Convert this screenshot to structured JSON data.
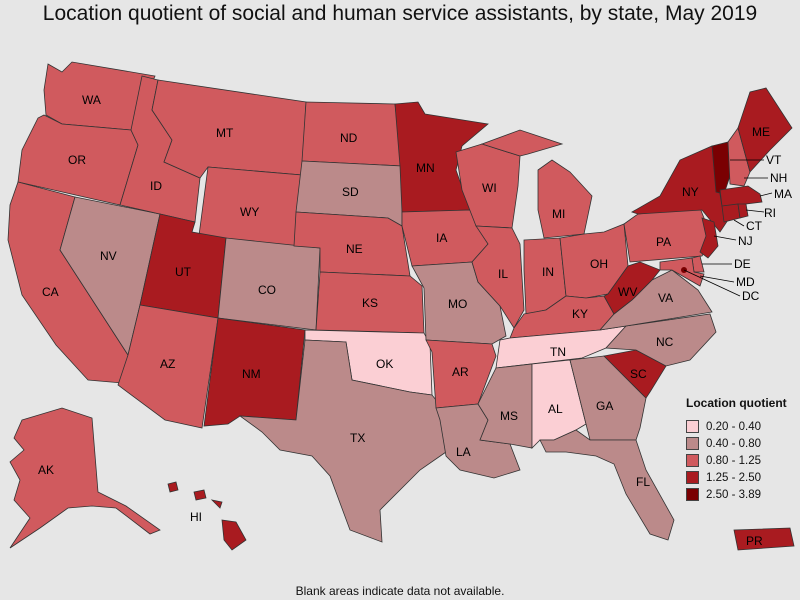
{
  "title": "Location quotient of social and human service assistants, by state, May 2019",
  "legend": {
    "title": "Location quotient",
    "bins": [
      {
        "label": "0.20 - 0.40",
        "color": "#fbcfd4"
      },
      {
        "label": "0.40 - 0.80",
        "color": "#bb8a8a"
      },
      {
        "label": "0.80 - 1.25",
        "color": "#d05a5e"
      },
      {
        "label": "1.25 - 2.50",
        "color": "#a91b20"
      },
      {
        "label": "2.50 - 3.89",
        "color": "#7a0002"
      }
    ]
  },
  "states": {
    "WA": {
      "label": "WA",
      "bin": 2
    },
    "OR": {
      "label": "OR",
      "bin": 2
    },
    "CA": {
      "label": "CA",
      "bin": 2
    },
    "NV": {
      "label": "NV",
      "bin": 1
    },
    "ID": {
      "label": "ID",
      "bin": 2
    },
    "MT": {
      "label": "MT",
      "bin": 2
    },
    "WY": {
      "label": "WY",
      "bin": 2
    },
    "UT": {
      "label": "UT",
      "bin": 3
    },
    "AZ": {
      "label": "AZ",
      "bin": 2
    },
    "CO": {
      "label": "CO",
      "bin": 1
    },
    "NM": {
      "label": "NM",
      "bin": 3
    },
    "ND": {
      "label": "ND",
      "bin": 2
    },
    "SD": {
      "label": "SD",
      "bin": 1
    },
    "NE": {
      "label": "NE",
      "bin": 2
    },
    "KS": {
      "label": "KS",
      "bin": 2
    },
    "OK": {
      "label": "OK",
      "bin": 0
    },
    "TX": {
      "label": "TX",
      "bin": 1
    },
    "MN": {
      "label": "MN",
      "bin": 3
    },
    "IA": {
      "label": "IA",
      "bin": 2
    },
    "MO": {
      "label": "MO",
      "bin": 1
    },
    "AR": {
      "label": "AR",
      "bin": 2
    },
    "LA": {
      "label": "LA",
      "bin": 1
    },
    "WI": {
      "label": "WI",
      "bin": 2
    },
    "IL": {
      "label": "IL",
      "bin": 2
    },
    "MI": {
      "label": "MI",
      "bin": 2
    },
    "IN": {
      "label": "IN",
      "bin": 2
    },
    "OH": {
      "label": "OH",
      "bin": 2
    },
    "KY": {
      "label": "KY",
      "bin": 2
    },
    "TN": {
      "label": "TN",
      "bin": 0
    },
    "MS": {
      "label": "MS",
      "bin": 1
    },
    "AL": {
      "label": "AL",
      "bin": 0
    },
    "GA": {
      "label": "GA",
      "bin": 1
    },
    "FL": {
      "label": "FL",
      "bin": 1
    },
    "SC": {
      "label": "SC",
      "bin": 3
    },
    "NC": {
      "label": "NC",
      "bin": 1
    },
    "VA": {
      "label": "VA",
      "bin": 1
    },
    "WV": {
      "label": "WV",
      "bin": 3
    },
    "PA": {
      "label": "PA",
      "bin": 2
    },
    "NY": {
      "label": "NY",
      "bin": 3
    },
    "VT": {
      "label": "VT",
      "bin": 4
    },
    "NH": {
      "label": "NH",
      "bin": 2
    },
    "ME": {
      "label": "ME",
      "bin": 3
    },
    "MA": {
      "label": "MA",
      "bin": 3
    },
    "RI": {
      "label": "RI",
      "bin": 3
    },
    "CT": {
      "label": "CT",
      "bin": 3
    },
    "NJ": {
      "label": "NJ",
      "bin": 3
    },
    "DE": {
      "label": "DE",
      "bin": 2
    },
    "MD": {
      "label": "MD",
      "bin": 2
    },
    "DC": {
      "label": "DC",
      "bin": 4
    },
    "AK": {
      "label": "AK",
      "bin": 2
    },
    "HI": {
      "label": "HI",
      "bin": 3
    },
    "PR": {
      "label": "PR",
      "bin": 3
    }
  },
  "footnote": "Blank areas indicate data not available."
}
